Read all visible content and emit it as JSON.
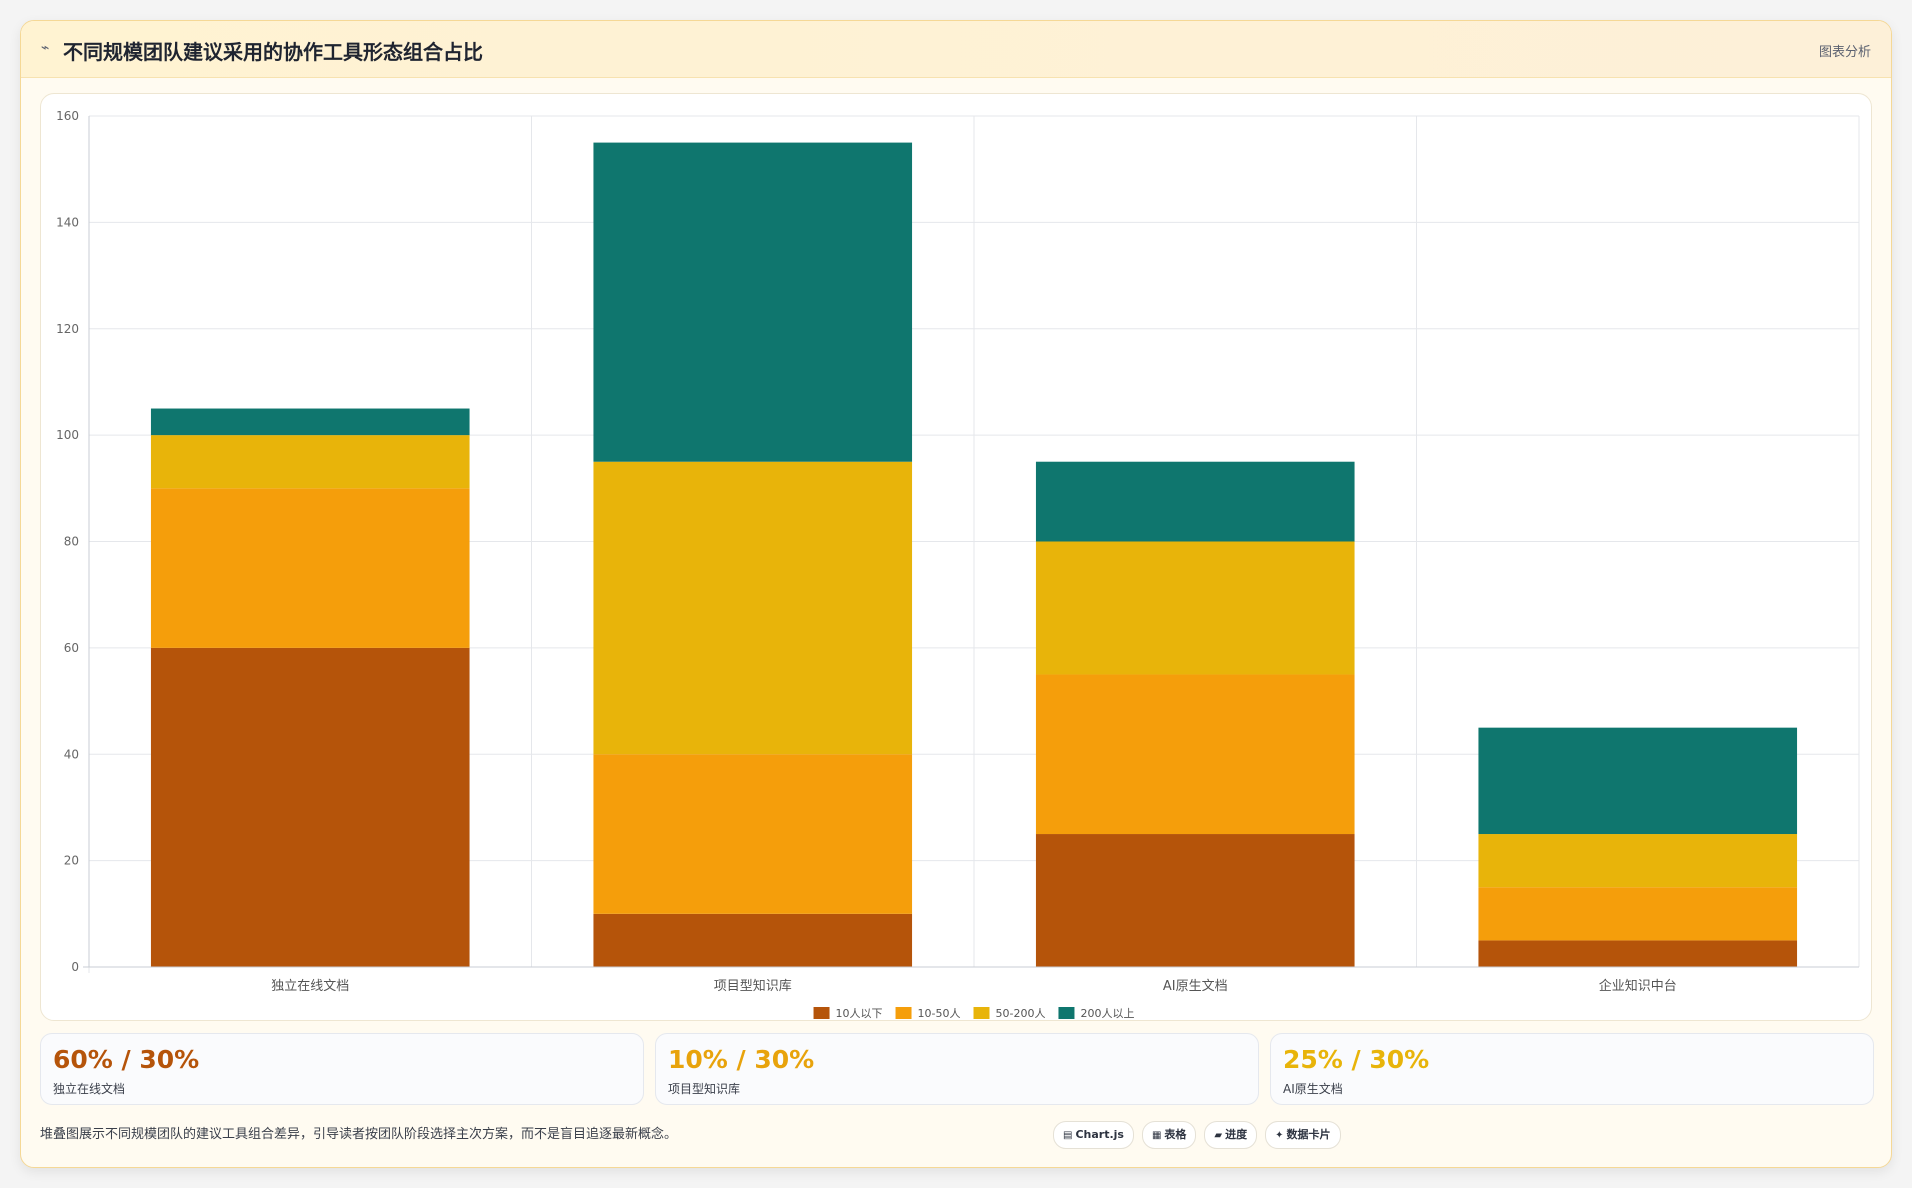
{
  "header": {
    "icon": "chart-line-icon",
    "title": "不同规模团队建议采用的协作工具形态组合占比",
    "tag": "图表分析"
  },
  "colors": {
    "series": [
      "#b5540a",
      "#f59e0b",
      "#e8b40a",
      "#0f766e"
    ],
    "stat_values": [
      "#b5540a",
      "#e8a30c",
      "#e8b40a"
    ],
    "grid": "#e5e7eb",
    "panel_bg": "#fffbf1"
  },
  "chart_data": {
    "type": "bar",
    "stacked": true,
    "categories": [
      "独立在线文档",
      "项目型知识库",
      "AI原生文档",
      "企业知识中台"
    ],
    "series": [
      {
        "name": "10人以下",
        "values": [
          60,
          10,
          25,
          5
        ]
      },
      {
        "name": "10-50人",
        "values": [
          30,
          30,
          30,
          10
        ]
      },
      {
        "name": "50-200人",
        "values": [
          10,
          55,
          25,
          10
        ]
      },
      {
        "name": "200人以上",
        "values": [
          5,
          60,
          15,
          20
        ]
      }
    ],
    "ylim": [
      0,
      160
    ],
    "yticks": [
      0,
      20,
      40,
      60,
      80,
      100,
      120,
      140,
      160
    ],
    "grid": true,
    "legend": "bottom-center"
  },
  "stats": [
    {
      "value": "60% / 30%",
      "label": "独立在线文档"
    },
    {
      "value": "10% / 30%",
      "label": "项目型知识库"
    },
    {
      "value": "25% / 30%",
      "label": "AI原生文档"
    }
  ],
  "footer": {
    "note": "堆叠图展示不同规模团队的建议工具组合差异，引导读者按团队阶段选择主次方案，而不是盲目追逐最新概念。",
    "chips": [
      {
        "icon": "chart-icon",
        "glyph": "▤",
        "label": "Chart.js"
      },
      {
        "icon": "table-icon",
        "glyph": "▦",
        "label": "表格"
      },
      {
        "icon": "progress-icon",
        "glyph": "▰",
        "label": "进度"
      },
      {
        "icon": "card-icon",
        "glyph": "✦",
        "label": "数据卡片"
      }
    ]
  }
}
